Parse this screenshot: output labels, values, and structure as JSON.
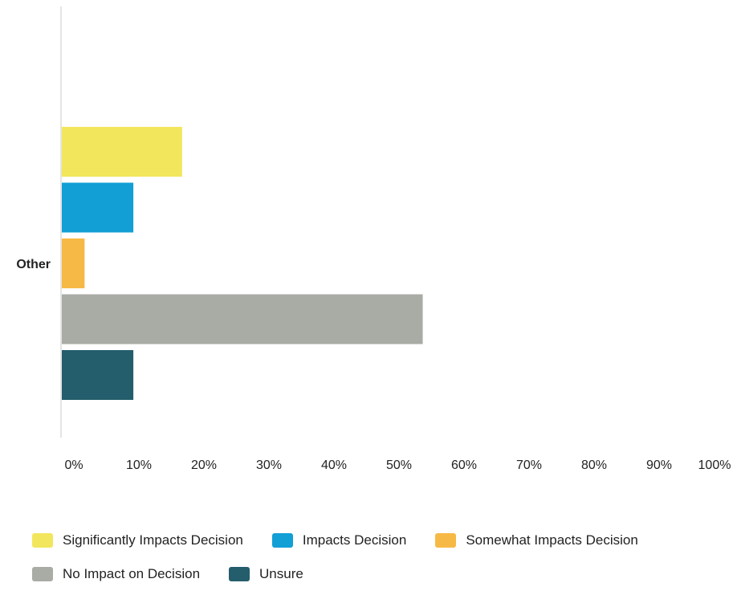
{
  "chart_data": {
    "type": "bar",
    "orientation": "horizontal",
    "categories": [
      "Other"
    ],
    "series": [
      {
        "name": "Significantly Impacts Decision",
        "values": [
          18.5
        ],
        "color": "#f2e65c"
      },
      {
        "name": "Impacts Decision",
        "values": [
          11
        ],
        "color": "#119fd6"
      },
      {
        "name": "Somewhat Impacts Decision",
        "values": [
          3.5
        ],
        "color": "#f7b945"
      },
      {
        "name": "No Impact on Decision",
        "values": [
          55.5
        ],
        "color": "#a9aba5"
      },
      {
        "name": "Unsure",
        "values": [
          11
        ],
        "color": "#245d6c"
      }
    ],
    "xticks": [
      "0%",
      "10%",
      "20%",
      "30%",
      "40%",
      "50%",
      "60%",
      "70%",
      "80%",
      "90%",
      "100%"
    ],
    "xlim": [
      0,
      100
    ],
    "grid": false,
    "legend_position": "bottom"
  }
}
